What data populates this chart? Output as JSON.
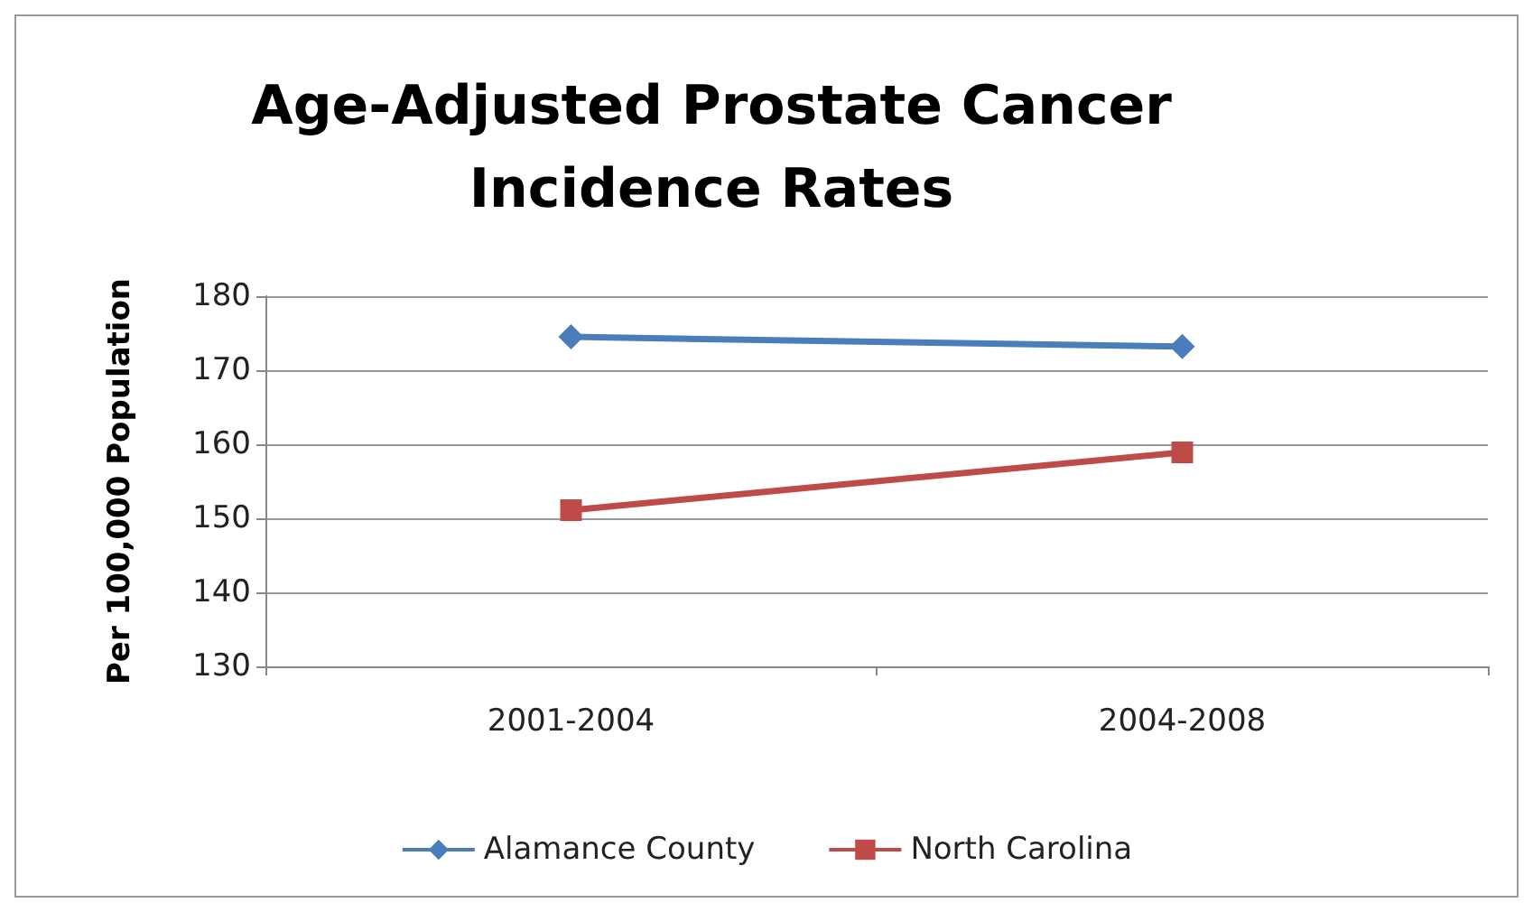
{
  "chart_data": {
    "type": "line",
    "title": "Age-Adjusted Prostate Cancer\nIncidence Rates",
    "ylabel": "Per 100,000 Population",
    "categories": [
      "2001-2004",
      "2004-2008"
    ],
    "series": [
      {
        "name": "Alamance County",
        "color": "#4a7ebb",
        "marker": "diamond",
        "values": [
          174.5,
          173.2
        ]
      },
      {
        "name": "North Carolina",
        "color": "#be4b48",
        "marker": "square",
        "values": [
          151.1,
          158.9
        ]
      }
    ],
    "ylim": [
      130,
      180
    ],
    "yticks": [
      130,
      140,
      150,
      160,
      170,
      180
    ],
    "grid": "y",
    "legend": "bottom"
  }
}
